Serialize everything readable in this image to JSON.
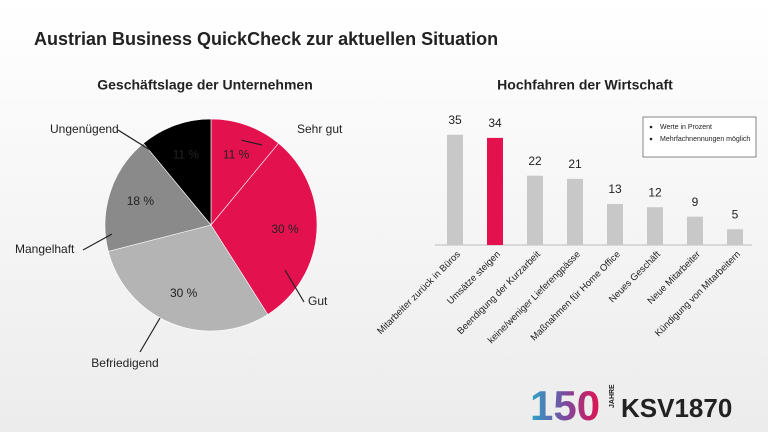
{
  "title": "Austrian Business QuickCheck zur aktuellen Situation",
  "chart_data": [
    {
      "type": "pie",
      "title": "Geschäftslage der Unternehmen",
      "categories": [
        "Sehr gut",
        "Gut",
        "Befriedigend",
        "Mangelhaft",
        "Ungenügend"
      ],
      "values": [
        11,
        30,
        30,
        18,
        11
      ],
      "value_labels": [
        "11 %",
        "30 %",
        "30 %",
        "18 %",
        "11 %"
      ],
      "colors": [
        "#e3124f",
        "#e3124f",
        "#b4b4b4",
        "#8a8a8a",
        "#000000"
      ]
    },
    {
      "type": "bar",
      "title": "Hochfahren der Wirtschaft",
      "categories": [
        "Mitarbeiter zurück in Büros",
        "Umsätze steigen",
        "Beendigung der Kurzarbeit",
        "keine/weniger Lieferengpässe",
        "Maßnahmen für Home Office",
        "Neues Geschäft",
        "Neue Mitarbeiter",
        "Kündigung von Mitarbeitern"
      ],
      "values": [
        35,
        34,
        22,
        21,
        13,
        12,
        9,
        5
      ],
      "colors": [
        "#c8c8c8",
        "#e3124f",
        "#c8c8c8",
        "#c8c8c8",
        "#c8c8c8",
        "#c8c8c8",
        "#c8c8c8",
        "#c8c8c8"
      ],
      "notes": [
        "Werte in Prozent",
        "Mehrfachnennungen möglich"
      ]
    }
  ],
  "logo": {
    "number": "150",
    "word": "JAHRE",
    "brand": "KSV1870"
  }
}
